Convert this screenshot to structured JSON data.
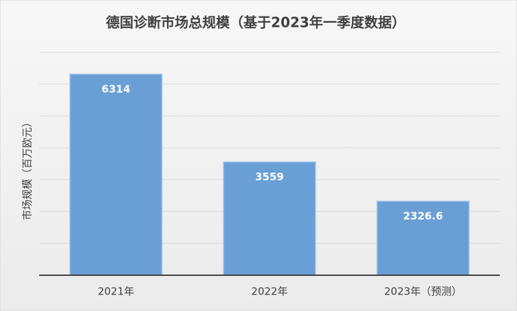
{
  "chart_data": {
    "type": "bar",
    "title": "德国诊断市场总规模（基于2023年一季度数据）",
    "y_label": "市场规模（百万欧元）",
    "categories": [
      "2021年",
      "2022年",
      "2023年（预测）"
    ],
    "values": [
      6314,
      3559,
      2326.6
    ],
    "color": "#6a9fd6",
    "ylim": [
      0,
      7000
    ],
    "yticks": [
      0,
      1000,
      2000,
      3000,
      4000,
      5000,
      6000,
      7000
    ],
    "grid": true
  }
}
